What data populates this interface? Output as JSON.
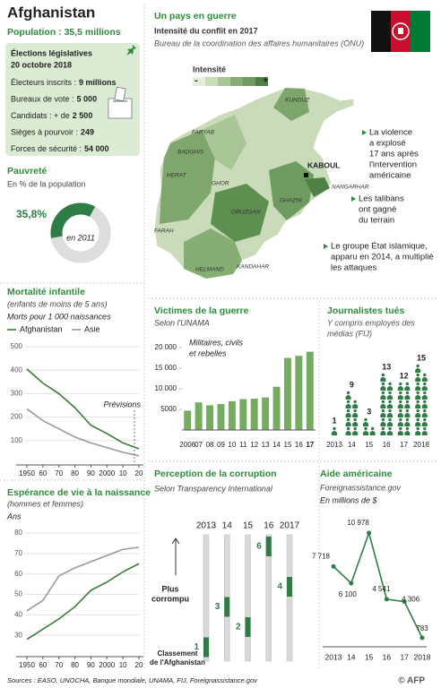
{
  "header": {
    "title": "Afghanistan",
    "population": "Population : 35,5 millions"
  },
  "elections": {
    "title": [
      "Élections législatives",
      "20 octobre 2018"
    ],
    "items": [
      {
        "label": "Électeurs inscrits :",
        "value": "9 millions"
      },
      {
        "label": "Bureaux de vote :",
        "value": "5 000"
      },
      {
        "label": "Candidats : + de",
        "value": "2 500"
      },
      {
        "label": "Sièges à pourvoir :",
        "value": "249"
      },
      {
        "label": "Forces de sécurité :",
        "value": "54 000"
      }
    ]
  },
  "map": {
    "title": "Un pays en guerre",
    "subtitle": "Intensité du conflit en 2017",
    "source": "Bureau de la coordination des affaires humanitaires (ONU)",
    "legend": {
      "title": "Intensité",
      "low": "-",
      "high": "+"
    },
    "capital": "KABOUL",
    "provinces": [
      "KUNDUZ",
      "FARYAB",
      "BADGHIS",
      "HERAT",
      "GHOR",
      "NANGARHAR",
      "GHAZNI",
      "ORUZGAN",
      "FARAH",
      "HELMAND",
      "KANDAHAR"
    ],
    "notes": [
      [
        "La violence",
        "a explosé",
        "17 ans après",
        "l'intervention",
        "américaine"
      ],
      [
        "Les talibans",
        "ont gagné",
        "du terrain"
      ],
      [
        "Le groupe État islamique,",
        "apparu en 2014, a multiplié",
        "les attaques"
      ]
    ]
  },
  "chart_data": [
    {
      "type": "pie",
      "title": "Pauvreté",
      "subtitle": "En % de la population",
      "values": [
        35.8
      ],
      "value_labels": [
        "35,8%"
      ],
      "annotation": "en 2011",
      "color": "#2f7d46"
    },
    {
      "type": "line",
      "title": "Mortalité infantile",
      "subtitle": "(enfants de moins de 5 ans)",
      "ylabel": "Morts pour 1 000 naissances",
      "x": [
        1950,
        1960,
        1970,
        1980,
        1990,
        2000,
        2010,
        2020
      ],
      "series": [
        {
          "name": "Afghanistan",
          "color": "#3d7a3a",
          "values": [
            405,
            345,
            300,
            240,
            165,
            130,
            90,
            65
          ]
        },
        {
          "name": "Asie",
          "color": "#9a9a9a",
          "values": [
            235,
            185,
            150,
            115,
            90,
            70,
            50,
            35
          ]
        }
      ],
      "xlim": [
        1950,
        2020
      ],
      "ylim": [
        0,
        500
      ],
      "yticks": [
        100,
        200,
        300,
        400,
        500
      ],
      "xticks": [
        1950,
        {
          "value": 1960,
          "label": "60"
        },
        {
          "value": 1970,
          "label": "70"
        },
        {
          "value": 1980,
          "label": "80"
        },
        {
          "value": 1990,
          "label": "90"
        },
        2000,
        {
          "value": 2010,
          "label": "10"
        },
        {
          "value": 2020,
          "label": "20"
        }
      ],
      "grid": true,
      "annotation": "Prévisions"
    },
    {
      "type": "line",
      "title": "Espérance de vie à la naissance",
      "subtitle": "(hommes et femmes)",
      "ylabel": "Ans",
      "x": [
        1950,
        1960,
        1970,
        1980,
        1990,
        2000,
        2010,
        2020
      ],
      "series": [
        {
          "color": "#3d7a3a",
          "values": [
            28,
            33,
            38,
            44,
            52,
            56,
            61,
            65
          ]
        },
        {
          "color": "#9a9a9a",
          "values": [
            42,
            47,
            59,
            63,
            66,
            69,
            72,
            73
          ]
        }
      ],
      "xlim": [
        1950,
        2020
      ],
      "ylim": [
        20,
        80
      ],
      "yticks": [
        30,
        40,
        50,
        60,
        70,
        80
      ],
      "xticks": [
        1950,
        {
          "value": 1960,
          "label": "60"
        },
        {
          "value": 1970,
          "label": "70"
        },
        {
          "value": 1980,
          "label": "80"
        },
        {
          "value": 1990,
          "label": "90"
        },
        2000,
        {
          "value": 2010,
          "label": "10"
        },
        {
          "value": 2020,
          "label": "20"
        }
      ],
      "grid": true
    },
    {
      "type": "bar",
      "title": "Victimes de la guerre",
      "subtitle": "Selon l'UNAMA",
      "annotation": [
        "Militaires, civils",
        "et rebelles"
      ],
      "categories": [
        "2006",
        "07",
        "08",
        "09",
        "10",
        "11",
        "12",
        "13",
        "14",
        "15",
        "16",
        "17"
      ],
      "values": [
        4700,
        6700,
        6000,
        6300,
        7000,
        7500,
        7600,
        7900,
        10500,
        17500,
        18000,
        19000
      ],
      "color": "#74ad62",
      "ylim": [
        0,
        20000
      ],
      "yticks": [
        5000,
        {
          "value": 10000,
          "label": "10 000"
        },
        {
          "value": 15000,
          "label": "15 000"
        },
        {
          "value": 20000,
          "label": "20 000"
        }
      ]
    },
    {
      "type": "pictogram",
      "title": "Journalistes tués",
      "subtitle": [
        "Y compris employés des",
        "médias (FIJ)"
      ],
      "categories": [
        "2013",
        "14",
        "15",
        "16",
        "17",
        "2018"
      ],
      "values": [
        1,
        9,
        3,
        13,
        12,
        15
      ],
      "color": "#2f7d46"
    },
    {
      "type": "rank",
      "title": "Perception de la corruption",
      "subtitle": "Selon Transparency International",
      "annotations": [
        [
          "Plus",
          "corrompu"
        ],
        [
          "Classement",
          "de l'Afghanistan"
        ]
      ],
      "categories": [
        "2013",
        "14",
        "15",
        "16",
        "2017"
      ],
      "values": [
        1,
        3,
        2,
        6,
        4
      ],
      "color": "#2f7d46"
    },
    {
      "type": "line",
      "title": "Aide américaine",
      "subtitle": "Foreignassistance.gov",
      "ylabel": "En millions de $",
      "categories": [
        "2013",
        "14",
        "15",
        "16",
        "17",
        "2018"
      ],
      "series": [
        {
          "color": "#2f7d46",
          "values": [
            7718,
            6100,
            10978,
            4541,
            4306,
            783
          ],
          "value_labels": [
            "7 718",
            "6 100",
            "10 978",
            "4 541",
            "4 306",
            "783"
          ]
        }
      ],
      "markers": true
    }
  ],
  "footer": {
    "sources": "Sources : EASO, UNOCHA, Banque mondiale, UNAMA, FIJ, Foreignassistance.gov",
    "logo": "© AFP"
  }
}
